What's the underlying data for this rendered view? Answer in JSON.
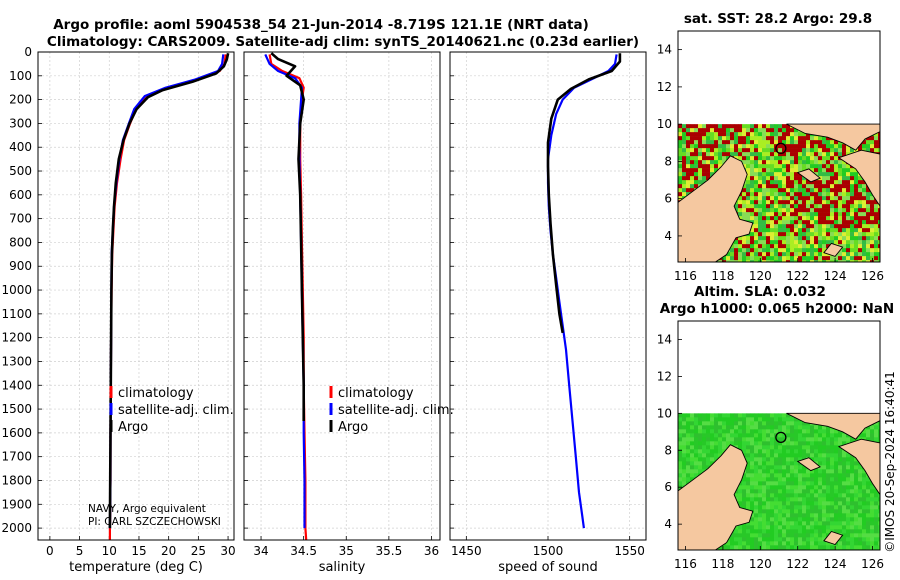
{
  "figure": {
    "title_line1": "Argo profile: aoml 5904538_54 21-Jun-2014 -8.719S 121.1E (NRT data)",
    "title_line2": "Climatology: CARS2009. Satellite-adj clim: synTS_20140621.nc (0.23d earlier)",
    "note_line1": "NAVY, Argo equivalent",
    "note_line2": "PI: CARL SZCZECHOWSKI",
    "timestamp": "©IMOS 20-Sep-2024 16:40:41"
  },
  "colors": {
    "climatology": "#ff0000",
    "satellite_adj": "#0000ff",
    "argo": "#000000",
    "land": "#f5c8a0",
    "sst_hot": "#aa0000"
  },
  "legend": [
    "climatology",
    "satellite-adj. clim.",
    "Argo"
  ],
  "chart_data": [
    {
      "type": "line",
      "name": "temperature",
      "xlabel": "temperature (deg C)",
      "xlim": [
        -2,
        31
      ],
      "xticks": [
        0,
        5,
        10,
        15,
        20,
        25,
        30
      ],
      "ylim": [
        2050,
        0
      ],
      "yticks": [
        0,
        100,
        200,
        300,
        400,
        500,
        600,
        700,
        800,
        900,
        1000,
        1100,
        1200,
        1300,
        1400,
        1500,
        1600,
        1700,
        1800,
        1900,
        2000
      ],
      "series": [
        {
          "name": "climatology",
          "x": [
            29.6,
            29.4,
            28.6,
            25,
            20,
            16.5,
            14.5,
            13.5,
            12.5,
            11.9,
            11.3,
            10.9,
            10.7,
            10.5,
            10.4,
            10.3,
            10.25,
            10.2,
            10.2,
            10.15,
            10.15,
            10.1,
            10.1,
            10.1
          ],
          "y": [
            10,
            50,
            80,
            115,
            150,
            185,
            240,
            300,
            370,
            450,
            550,
            650,
            750,
            850,
            1000,
            1200,
            1400,
            1600,
            1800,
            1900,
            1950,
            2000,
            2025,
            2050
          ]
        },
        {
          "name": "satellite-adj. clim.",
          "x": [
            29.2,
            29,
            28.3,
            24.5,
            19.5,
            16,
            14.2,
            13.3,
            12.3,
            11.7,
            11.2,
            10.8,
            10.6,
            10.4,
            10.35,
            10.3,
            10.25,
            10.2,
            10.2,
            10.15,
            10.1
          ],
          "y": [
            10,
            50,
            80,
            115,
            150,
            185,
            240,
            300,
            370,
            450,
            550,
            650,
            750,
            850,
            1000,
            1200,
            1400,
            1600,
            1800,
            1900,
            2000
          ]
        },
        {
          "name": "Argo",
          "x": [
            30,
            29.8,
            29.3,
            28,
            24,
            19,
            16.5,
            14.6,
            13.4,
            12.4,
            11.6,
            11.1,
            10.8,
            10.6,
            10.45,
            10.35,
            10.3,
            10.25,
            10.2,
            10.15,
            10.1
          ],
          "y": [
            5,
            30,
            60,
            90,
            125,
            160,
            190,
            240,
            300,
            370,
            450,
            550,
            650,
            750,
            850,
            1000,
            1200,
            1400,
            1600,
            1800,
            2000
          ]
        }
      ]
    },
    {
      "type": "line",
      "name": "salinity",
      "xlabel": "salinity",
      "xlim": [
        33.8,
        36.1
      ],
      "xticks": [
        34,
        34.5,
        35,
        35.5,
        36
      ],
      "xticklabels": [
        "34",
        "34.5",
        "35",
        "35.5",
        "36"
      ],
      "ylim": [
        2050,
        0
      ],
      "series": [
        {
          "name": "climatology",
          "x": [
            34.1,
            34.12,
            34.25,
            34.45,
            34.5,
            34.48,
            34.46,
            34.46,
            34.47,
            34.48,
            34.49,
            34.5,
            34.5,
            34.51,
            34.52,
            34.52,
            34.53
          ],
          "y": [
            10,
            50,
            80,
            110,
            150,
            200,
            300,
            450,
            600,
            800,
            1000,
            1200,
            1400,
            1600,
            1800,
            2000,
            2050
          ]
        },
        {
          "name": "satellite-adj. clim.",
          "x": [
            34.05,
            34.1,
            34.2,
            34.4,
            34.48,
            34.47,
            34.45,
            34.45,
            34.46,
            34.47,
            34.48,
            34.49,
            34.5,
            34.5,
            34.51,
            34.51
          ],
          "y": [
            10,
            50,
            80,
            110,
            150,
            200,
            300,
            450,
            600,
            800,
            1000,
            1200,
            1400,
            1600,
            1800,
            2000
          ]
        },
        {
          "name": "Argo",
          "x": [
            34.12,
            34.2,
            34.4,
            34.3,
            34.46,
            34.5,
            34.46,
            34.44,
            34.46,
            34.47,
            34.48,
            34.49,
            34.5,
            34.5
          ],
          "y": [
            5,
            30,
            60,
            100,
            140,
            200,
            300,
            450,
            600,
            800,
            1000,
            1200,
            1400,
            1550
          ]
        }
      ]
    },
    {
      "type": "line",
      "name": "speed of sound",
      "xlabel": "speed of sound",
      "xlim": [
        1440,
        1560
      ],
      "xticks": [
        1450,
        1500,
        1550
      ],
      "ylim": [
        2050,
        0
      ],
      "series": [
        {
          "name": "satellite-adj. clim.",
          "x": [
            1542,
            1541,
            1537,
            1528,
            1516,
            1509,
            1505,
            1502,
            1500,
            1500,
            1500.5,
            1501.5,
            1503,
            1505,
            1507,
            1509,
            1511,
            1513,
            1515,
            1517,
            1519,
            1521,
            1522
          ],
          "y": [
            10,
            50,
            80,
            110,
            150,
            200,
            260,
            350,
            450,
            550,
            650,
            750,
            850,
            950,
            1050,
            1150,
            1250,
            1400,
            1550,
            1700,
            1850,
            1950,
            2000
          ]
        },
        {
          "name": "Argo",
          "x": [
            1544,
            1544,
            1539,
            1525,
            1514,
            1506,
            1502,
            1500,
            1500,
            1500.5,
            1501.5,
            1503,
            1505,
            1507,
            1509
          ],
          "y": [
            5,
            40,
            80,
            115,
            155,
            200,
            280,
            380,
            480,
            600,
            720,
            850,
            980,
            1100,
            1180
          ]
        }
      ]
    },
    {
      "type": "heatmap",
      "name": "sst_map",
      "title": "sat. SST: 28.2 Argo: 29.8",
      "xlim": [
        115.6,
        126.4
      ],
      "ylim": [
        2.6,
        15
      ],
      "xticks": [
        116,
        118,
        120,
        122,
        124,
        126
      ],
      "yticks": [
        4,
        6,
        8,
        10,
        12,
        14
      ],
      "data_lat_top": 10,
      "argo_position": [
        121.1,
        8.7
      ]
    },
    {
      "type": "heatmap",
      "name": "sla_map",
      "title_line1": "Altim. SLA: 0.032",
      "title_line2": "Argo h1000: 0.065 h2000: NaN",
      "xlim": [
        115.6,
        126.4
      ],
      "ylim": [
        2.6,
        15
      ],
      "xticks": [
        116,
        118,
        120,
        122,
        124,
        126
      ],
      "yticks": [
        4,
        6,
        8,
        10,
        12,
        14
      ],
      "data_lat_top": 10,
      "argo_position": [
        121.1,
        8.7
      ]
    }
  ]
}
